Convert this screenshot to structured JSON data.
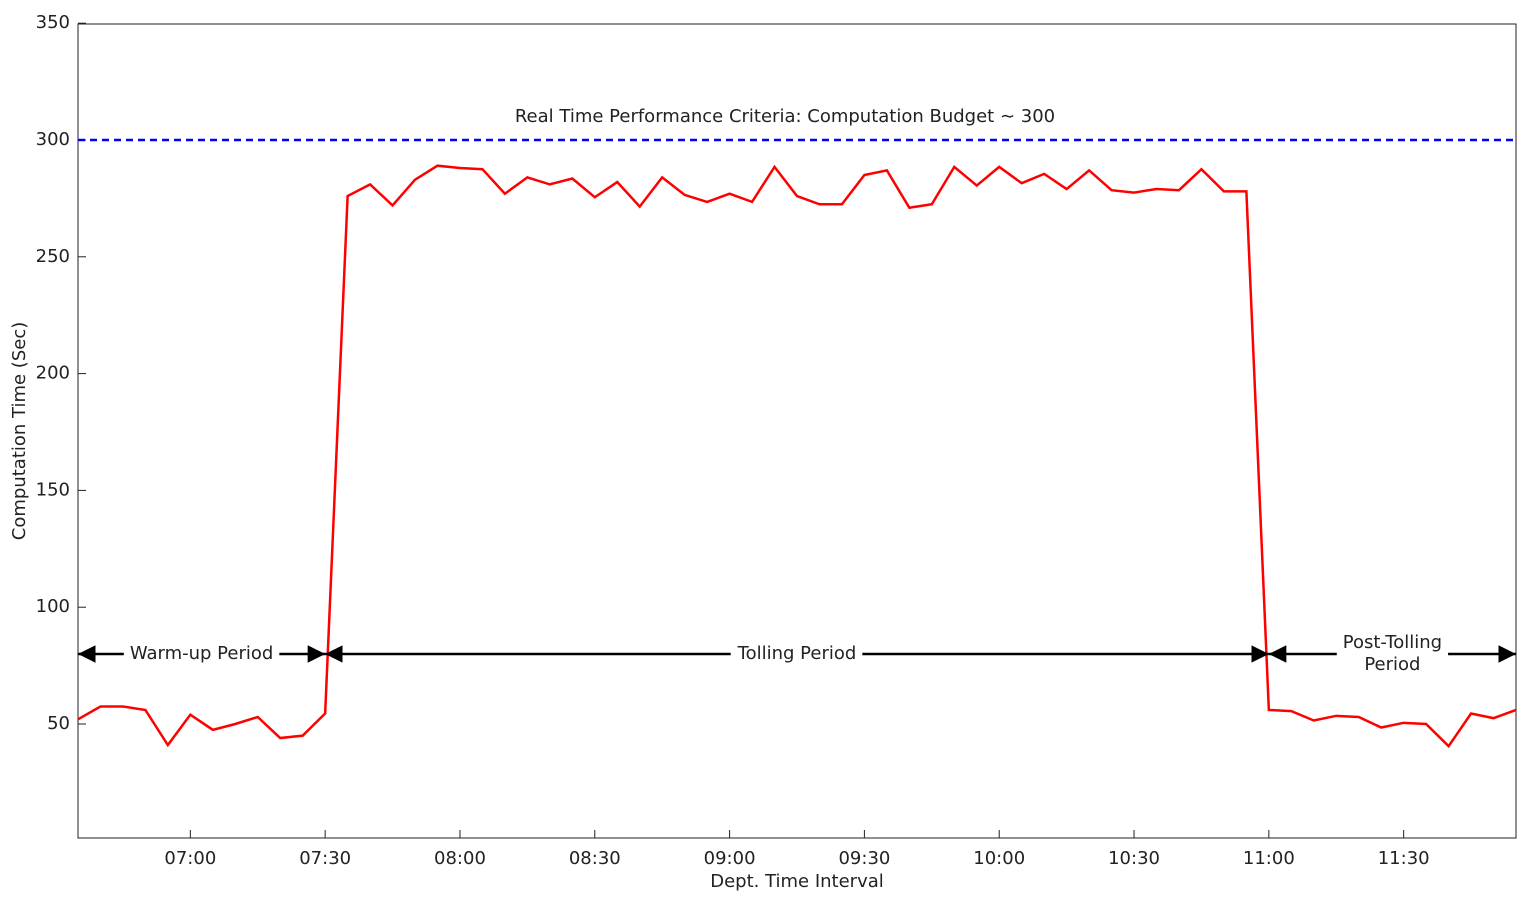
{
  "chart_data": {
    "type": "line",
    "xlabel": "Dept. Time Interval",
    "ylabel": "Computation Time (Sec)",
    "x": [
      "06:35",
      "06:40",
      "06:45",
      "06:50",
      "06:55",
      "07:00",
      "07:05",
      "07:10",
      "07:15",
      "07:20",
      "07:25",
      "07:30",
      "07:35",
      "07:40",
      "07:45",
      "07:50",
      "07:55",
      "08:00",
      "08:05",
      "08:10",
      "08:15",
      "08:20",
      "08:25",
      "08:30",
      "08:35",
      "08:40",
      "08:45",
      "08:50",
      "08:55",
      "09:00",
      "09:05",
      "09:10",
      "09:15",
      "09:20",
      "09:25",
      "09:30",
      "09:35",
      "09:40",
      "09:45",
      "09:50",
      "09:55",
      "10:00",
      "10:05",
      "10:10",
      "10:15",
      "10:20",
      "10:25",
      "10:30",
      "10:35",
      "10:40",
      "10:45",
      "10:50",
      "10:55",
      "11:00",
      "11:05",
      "11:10",
      "11:15",
      "11:20",
      "11:25",
      "11:30",
      "11:35",
      "11:40",
      "11:45",
      "11:50",
      "11:55"
    ],
    "values": [
      52,
      57.5,
      57.5,
      56,
      41,
      54,
      47.5,
      50,
      53,
      44,
      45,
      54.5,
      276,
      281,
      272,
      283,
      289,
      288,
      287.5,
      277,
      284,
      281,
      283.5,
      275.5,
      282,
      271.5,
      284,
      276.5,
      273.5,
      277,
      273.5,
      288.5,
      276,
      272.5,
      272.5,
      285,
      287,
      271,
      272.5,
      288.5,
      280.5,
      288.5,
      281.5,
      285.5,
      279,
      287,
      278.5,
      277.5,
      279,
      278.5,
      287.5,
      278,
      278,
      56,
      55.5,
      51.5,
      53.5,
      53,
      48.5,
      50.5,
      50,
      40.5,
      54.5,
      52.5,
      56
    ],
    "color": "#ff0000",
    "xlim": [
      "06:35",
      "11:55"
    ],
    "xticks": [
      "07:00",
      "07:30",
      "08:00",
      "08:30",
      "09:00",
      "09:30",
      "10:00",
      "10:30",
      "11:00",
      "11:30"
    ],
    "ylim": [
      0,
      350
    ],
    "yticks": [
      50,
      100,
      150,
      200,
      250,
      300,
      350
    ],
    "reference_line": {
      "value": 300,
      "label": "Real Time Performance Criteria: Computation Budget ∼ 300",
      "color": "#0000ff"
    },
    "periods": [
      {
        "label": [
          "Warm-up Period"
        ],
        "start": "06:35",
        "end": "07:30"
      },
      {
        "label": [
          "Tolling Period"
        ],
        "start": "07:30",
        "end": "11:00"
      },
      {
        "label": [
          "Post-Tolling",
          "Period"
        ],
        "start": "11:00",
        "end": "11:55"
      }
    ]
  }
}
